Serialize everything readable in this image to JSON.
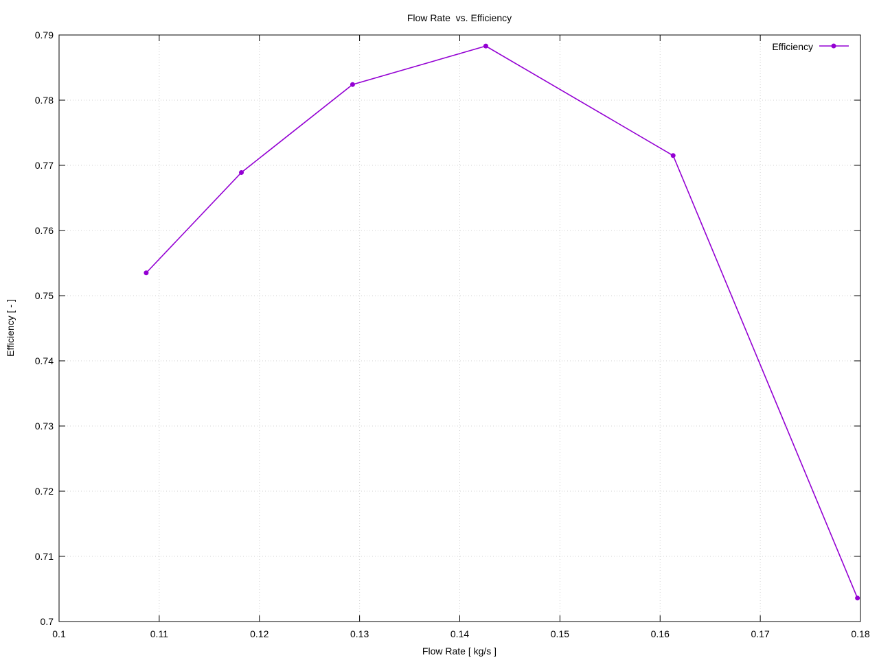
{
  "chart_data": {
    "type": "line",
    "title": "Flow Rate  vs. Efficiency",
    "xlabel": "Flow Rate [ kg/s ]",
    "ylabel": "Efficiency [ - ]",
    "xlim": [
      0.1,
      0.18
    ],
    "ylim": [
      0.7,
      0.79
    ],
    "xticks": [
      "0.1",
      "0.11",
      "0.12",
      "0.13",
      "0.14",
      "0.15",
      "0.16",
      "0.17",
      "0.18"
    ],
    "yticks": [
      "0.7",
      "0.71",
      "0.72",
      "0.73",
      "0.74",
      "0.75",
      "0.76",
      "0.77",
      "0.78",
      "0.79"
    ],
    "grid": true,
    "legend_position": "top-right",
    "series": [
      {
        "name": "Efficiency",
        "color": "#9400d3",
        "x": [
          0.1087,
          0.1182,
          0.1293,
          0.1426,
          0.1613,
          0.1797
        ],
        "y": [
          0.7535,
          0.7689,
          0.7824,
          0.7883,
          0.7715,
          0.7036
        ]
      }
    ]
  }
}
